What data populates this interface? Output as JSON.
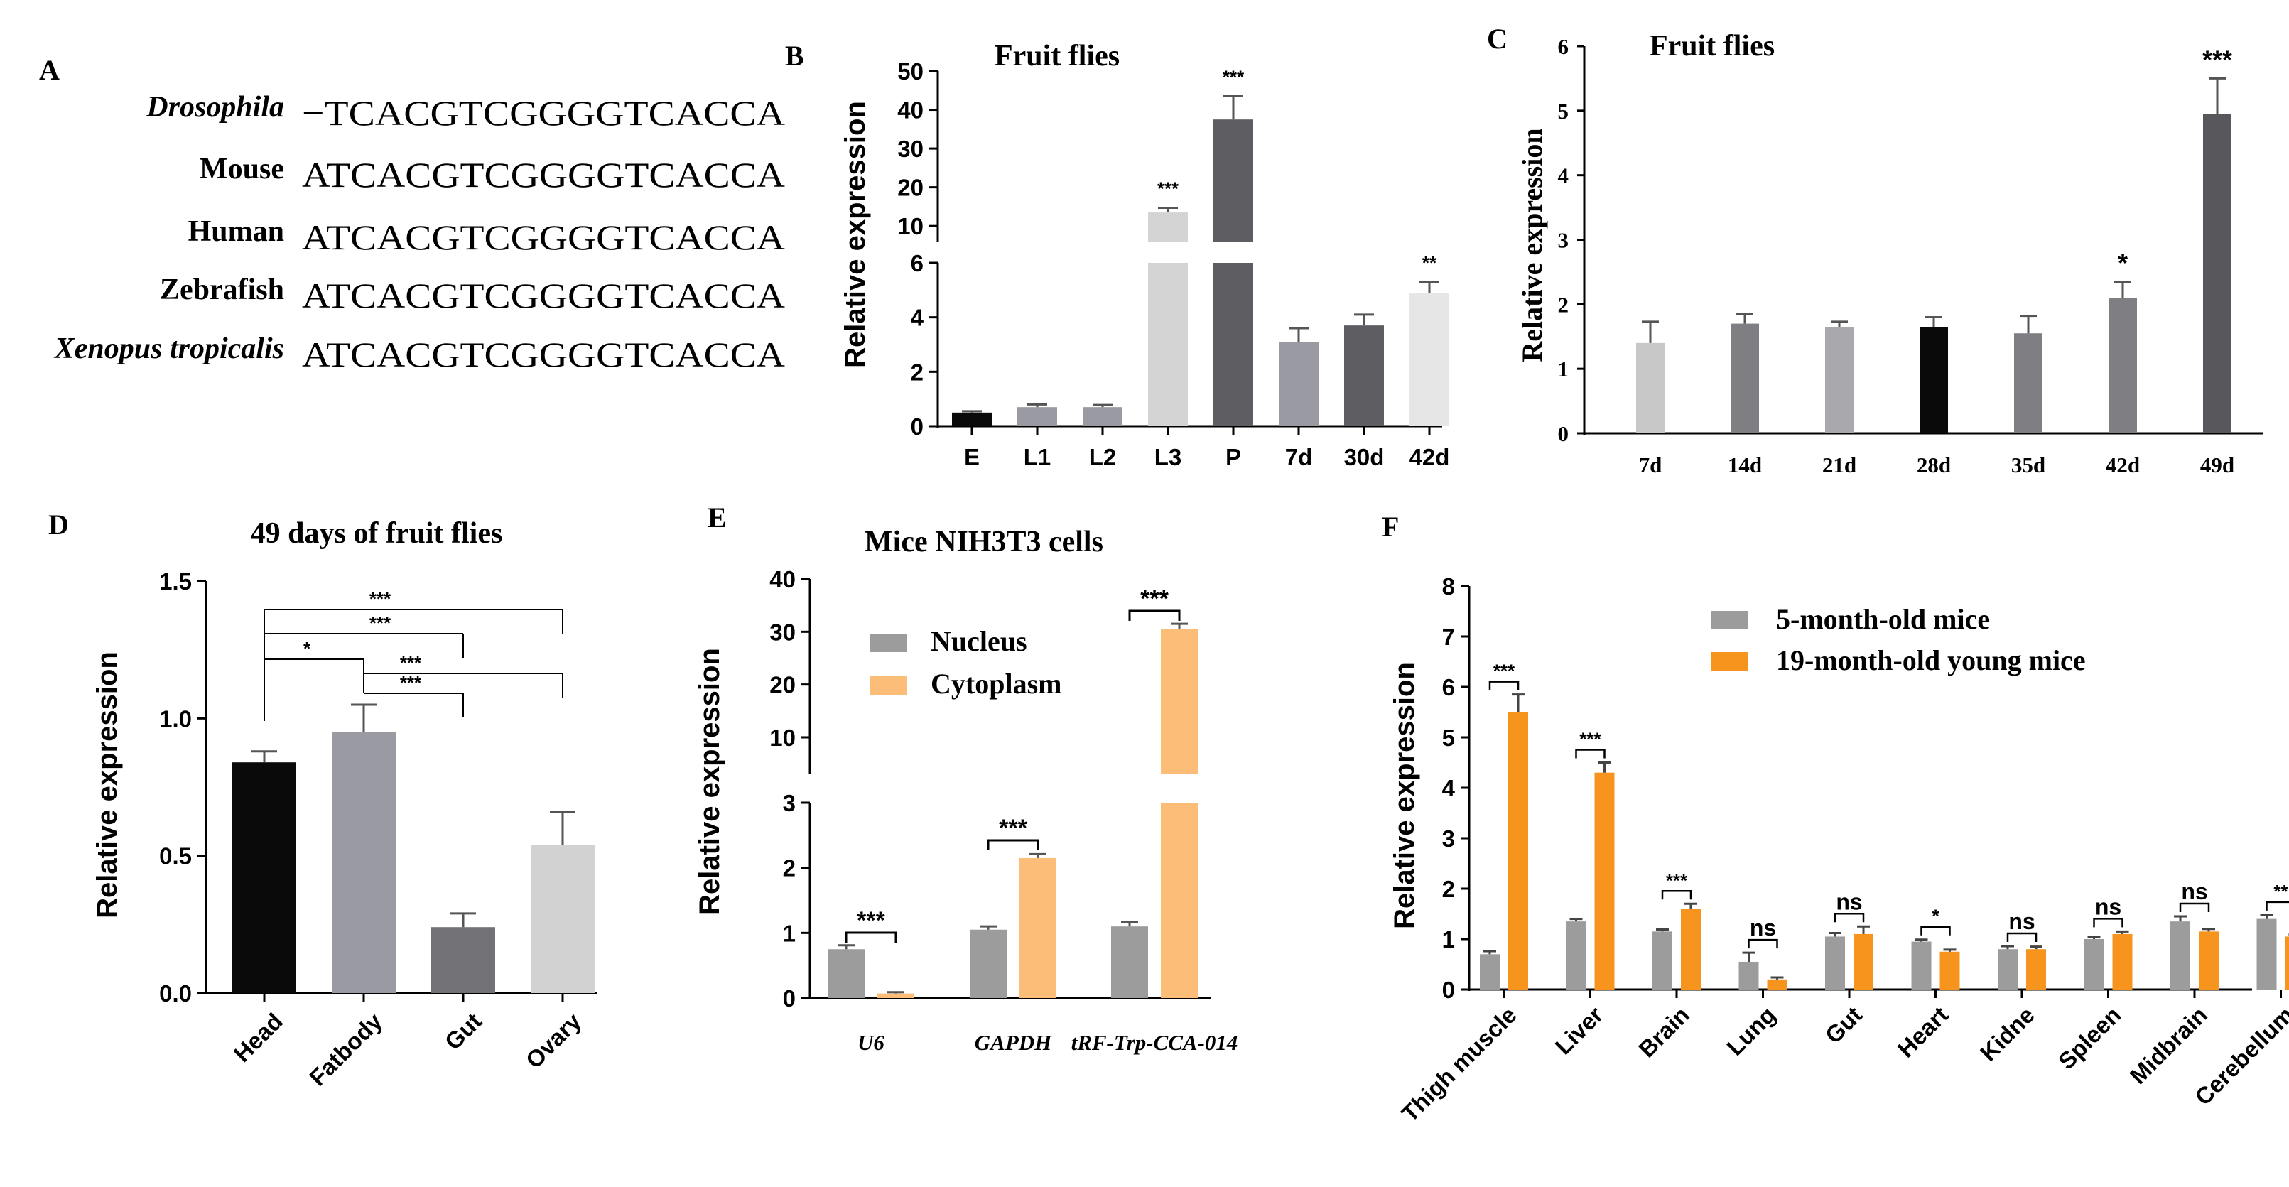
{
  "panel_a": {
    "letter": "A",
    "rows": [
      {
        "species": "Drosophila",
        "italic": true,
        "sequence": "−TCACGTCGGGGTCACCA"
      },
      {
        "species": "Mouse",
        "italic": false,
        "sequence": "ATCACGTCGGGGTCACCA"
      },
      {
        "species": "Human",
        "italic": false,
        "sequence": "ATCACGTCGGGGTCACCA"
      },
      {
        "species": "Zebrafish",
        "italic": false,
        "sequence": "ATCACGTCGGGGTCACCA"
      },
      {
        "species": "Xenopus tropicalis",
        "italic": true,
        "sequence": "ATCACGTCGGGGTCACCA"
      }
    ]
  },
  "colors": {
    "black": "#0a0a0a",
    "grey_mid": "#8e8e96",
    "grey_light": "#cfcfcf",
    "grey_dark": "#5a5a5e",
    "grey_med2": "#7b7b7f",
    "grey_lighter": "#a9a9ad",
    "very_light": "#e4e4e4",
    "orange_pale": "#fcbd78",
    "orange": "#f7941d",
    "nucleus_grey": "#9c9c9c"
  },
  "chart_data": [
    {
      "panel": "B",
      "type": "bar",
      "title": "Fruit flies",
      "ylabel": "Relative expression",
      "categories": [
        "E",
        "L1",
        "L2",
        "L3",
        "P",
        "7d",
        "30d",
        "42d"
      ],
      "values": [
        0.5,
        0.7,
        0.7,
        13.5,
        37.5,
        3.1,
        3.7,
        4.9
      ],
      "errors": [
        0.05,
        0.1,
        0.08,
        1.2,
        6.0,
        0.5,
        0.4,
        0.4
      ],
      "bar_colors": [
        "#0a0a0a",
        "#9a9aa2",
        "#9a9aa2",
        "#d4d4d4",
        "#5e5e62",
        "#9a9aa2",
        "#5e5e62",
        "#e6e6e6"
      ],
      "significance": [
        "",
        "",
        "",
        "***",
        "***",
        "",
        "",
        "**"
      ],
      "axis_break": {
        "lower": [
          0,
          6
        ],
        "upper": [
          6,
          50
        ]
      },
      "yticks_lower": [
        0,
        2,
        4,
        6
      ],
      "yticks_upper": [
        10,
        20,
        30,
        40,
        50
      ]
    },
    {
      "panel": "C",
      "type": "bar",
      "title": "Fruit flies",
      "ylabel": "Relative expression",
      "categories": [
        "7d",
        "14d",
        "21d",
        "28d",
        "35d",
        "42d",
        "49d"
      ],
      "values": [
        1.4,
        1.7,
        1.65,
        1.65,
        1.55,
        2.1,
        4.95
      ],
      "errors": [
        0.33,
        0.15,
        0.08,
        0.15,
        0.27,
        0.25,
        0.55
      ],
      "bar_colors": [
        "#c8c8c8",
        "#7f7f83",
        "#a9a9ad",
        "#0a0a0a",
        "#7f7f83",
        "#7f7f83",
        "#58585c"
      ],
      "significance": [
        "",
        "",
        "",
        "",
        "",
        "*",
        "***"
      ],
      "ylim": [
        0,
        6
      ],
      "yticks": [
        0,
        1,
        2,
        3,
        4,
        5,
        6
      ]
    },
    {
      "panel": "D",
      "type": "bar",
      "title": "49 days of fruit flies",
      "ylabel": "Relative expression",
      "categories": [
        "Head",
        "Fatbody",
        "Gut",
        "Ovary"
      ],
      "values": [
        0.84,
        0.95,
        0.24,
        0.54
      ],
      "errors": [
        0.04,
        0.1,
        0.05,
        0.12
      ],
      "bar_colors": [
        "#0a0a0a",
        "#9a9aa2",
        "#727276",
        "#d2d2d2"
      ],
      "ylim": [
        0,
        1.5
      ],
      "yticks": [
        "0.0",
        "0.5",
        "1.0",
        "1.5"
      ],
      "comparison_brackets": [
        {
          "from": "Head",
          "to": "Ovary",
          "label": "***"
        },
        {
          "from": "Head",
          "to": "Gut",
          "label": "***"
        },
        {
          "from": "Head",
          "to": "Fatbody",
          "label": "*"
        },
        {
          "from": "Fatbody",
          "to": "Ovary",
          "label": "***"
        },
        {
          "from": "Fatbody",
          "to": "Gut",
          "label": "***"
        }
      ]
    },
    {
      "panel": "E",
      "type": "bar",
      "title": "Mice NIH3T3 cells",
      "ylabel": "Relative expression",
      "categories": [
        "U6",
        "GAPDH",
        "tRF-Trp-CCA-014"
      ],
      "series": [
        {
          "name": "Nucleus",
          "values": [
            0.75,
            1.05,
            1.1
          ],
          "errors": [
            0.06,
            0.05,
            0.07
          ],
          "color": "#9c9c9c"
        },
        {
          "name": "Cytoplasm",
          "values": [
            0.07,
            2.15,
            30.5
          ],
          "errors": [
            0.02,
            0.06,
            1.0
          ],
          "color": "#fcbd78"
        }
      ],
      "significance": [
        "***",
        "***",
        "***"
      ],
      "axis_break": {
        "lower": [
          0,
          3
        ],
        "upper": [
          3,
          40
        ]
      },
      "yticks_lower": [
        0,
        1,
        2,
        3
      ],
      "yticks_upper": [
        10,
        20,
        30,
        40
      ],
      "legend": "top-left"
    },
    {
      "panel": "F",
      "type": "bar",
      "ylabel": "Relative expression",
      "categories": [
        "Thigh muscle",
        "Liver",
        "Brain",
        "Lung",
        "Gut",
        "Heart",
        "Kidne",
        "Spleen",
        "Midbrain",
        "Cerebellum"
      ],
      "series": [
        {
          "name": "5-month-old mice",
          "values": [
            0.7,
            1.35,
            1.15,
            0.55,
            1.05,
            0.95,
            0.8,
            1.0,
            1.35,
            1.4
          ],
          "errors": [
            0.06,
            0.05,
            0.04,
            0.18,
            0.07,
            0.04,
            0.06,
            0.04,
            0.1,
            0.08
          ],
          "color": "#9c9c9c"
        },
        {
          "name": "19-month-old young mice",
          "values": [
            5.5,
            4.3,
            1.6,
            0.2,
            1.1,
            0.75,
            0.8,
            1.1,
            1.15,
            1.05
          ],
          "errors": [
            0.35,
            0.2,
            0.1,
            0.04,
            0.15,
            0.04,
            0.05,
            0.05,
            0.05,
            0.04
          ],
          "color": "#f7941d"
        }
      ],
      "significance": [
        "***",
        "***",
        "***",
        "ns",
        "ns",
        "*",
        "ns",
        "ns",
        "ns",
        "**"
      ],
      "ylim": [
        0,
        8
      ],
      "yticks": [
        0,
        1,
        2,
        3,
        4,
        5,
        6,
        7,
        8
      ],
      "legend": "top-center"
    }
  ]
}
